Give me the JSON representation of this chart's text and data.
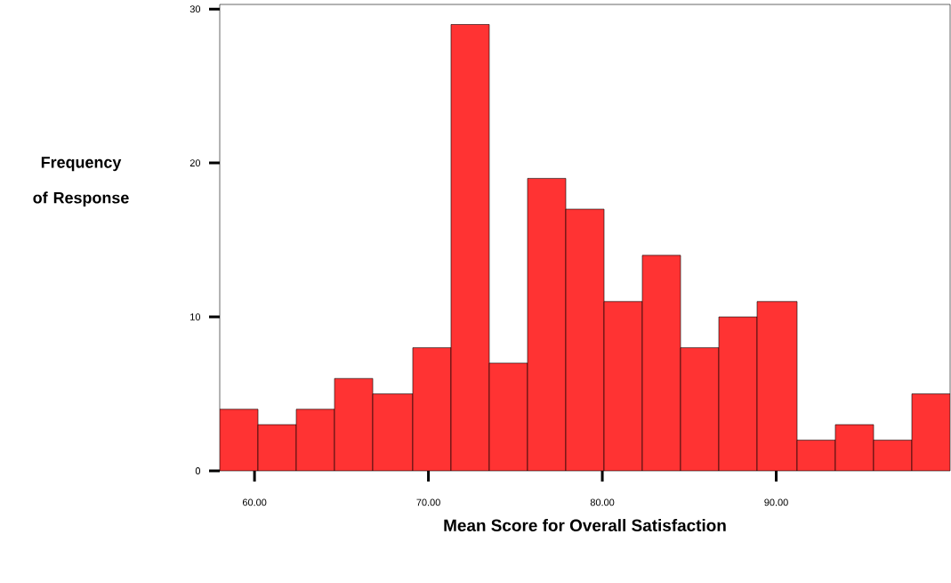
{
  "chart_data": {
    "type": "histogram",
    "xlabel": "Mean Score for Overall Satisfaction",
    "ylabel": "Frequency of Response",
    "bins": [
      58.0,
      60.2,
      62.4,
      64.6,
      66.8,
      69.1,
      71.3,
      73.5,
      75.7,
      77.9,
      80.1,
      82.3,
      84.5,
      86.7,
      88.9,
      91.2,
      93.4,
      95.6,
      97.8,
      100.0
    ],
    "values": [
      4,
      3,
      4,
      6,
      5,
      8,
      29,
      7,
      19,
      17,
      11,
      14,
      8,
      10,
      11,
      2,
      3,
      2,
      5
    ],
    "color": "#ff3333",
    "xlim": [
      58,
      100
    ],
    "ylim": [
      0,
      30.3
    ],
    "xticks": [
      {
        "value": 60,
        "label": "60.00"
      },
      {
        "value": 70,
        "label": "70.00"
      },
      {
        "value": 80,
        "label": "80.00"
      },
      {
        "value": 90,
        "label": "90.00"
      }
    ],
    "yticks": [
      0,
      10,
      20,
      30
    ]
  }
}
